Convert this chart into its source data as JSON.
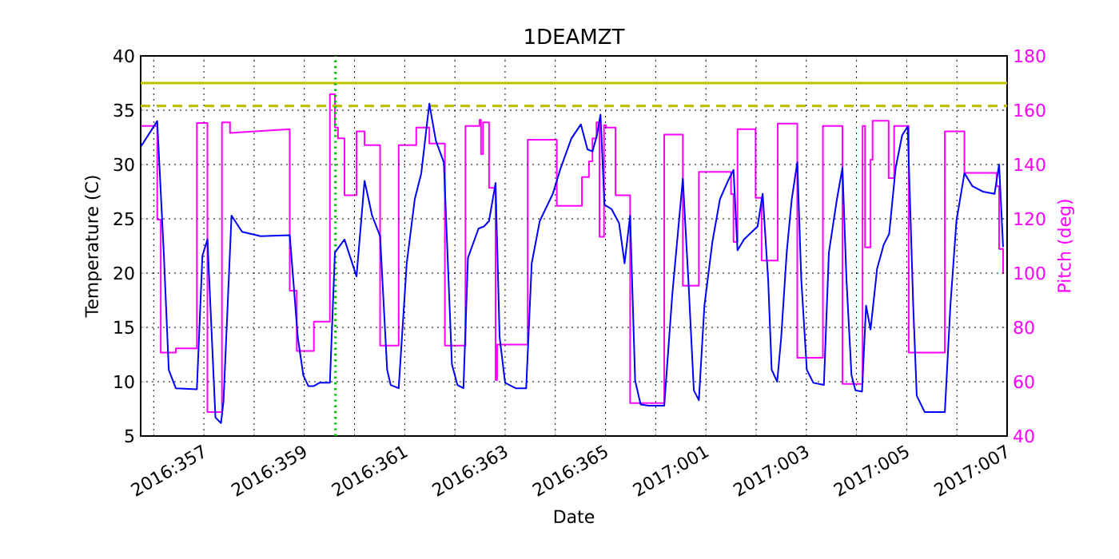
{
  "chart_data": {
    "type": "line",
    "title": "1DEAMZT",
    "xlabel": "Date",
    "ylabel": "Temperature (C)",
    "y2label": "Pitch (deg)",
    "xlim": [
      "2016-12-20T17:46",
      "2017-01-07"
    ],
    "ylim": [
      5,
      40
    ],
    "y2lim": [
      40,
      180
    ],
    "xticks": [
      {
        "value": "2016-12-21",
        "label": null
      },
      {
        "value": "2016-12-22",
        "label": "2016:357"
      },
      {
        "value": "2016-12-23",
        "label": null
      },
      {
        "value": "2016-12-24",
        "label": "2016:359"
      },
      {
        "value": "2016-12-25",
        "label": null
      },
      {
        "value": "2016-12-26",
        "label": "2016:361"
      },
      {
        "value": "2016-12-27",
        "label": null
      },
      {
        "value": "2016-12-28",
        "label": "2016:363"
      },
      {
        "value": "2016-12-29",
        "label": null
      },
      {
        "value": "2016-12-30",
        "label": "2016:365"
      },
      {
        "value": "2016-12-31",
        "label": null
      },
      {
        "value": "2017-01-01",
        "label": "2017:001"
      },
      {
        "value": "2017-01-02",
        "label": null
      },
      {
        "value": "2017-01-03",
        "label": "2017:003"
      },
      {
        "value": "2017-01-04",
        "label": null
      },
      {
        "value": "2017-01-05",
        "label": "2017:005"
      },
      {
        "value": "2017-01-06",
        "label": null
      },
      {
        "value": "2017-01-07",
        "label": "2017:007"
      }
    ],
    "yticks": [
      5,
      10,
      15,
      20,
      25,
      30,
      35,
      40
    ],
    "y2ticks": [
      40,
      60,
      80,
      100,
      120,
      140,
      160,
      180
    ],
    "grid": true,
    "ref_lines": [
      {
        "axis": "y",
        "value": 37.5,
        "color": "#bfbf00",
        "line_style": "solid"
      },
      {
        "axis": "y",
        "value": 35.4,
        "color": "#bfbf00",
        "line_style": "dashed"
      },
      {
        "axis": "x",
        "value": "2016-12-24T14:53",
        "color": "#00bf00",
        "line_style": "dotted"
      }
    ],
    "series": [
      {
        "color": "#0000ff",
        "x": [
          "2016-12-20T18:00",
          "2016-12-21T01:41",
          "2016-12-21T04:48",
          "2016-12-21T07:12",
          "2016-12-21T10:34",
          "2016-12-21T20:38",
          "2016-12-21T23:17",
          "2016-12-22T01:41",
          "2016-12-22T05:31",
          "2016-12-22T08:10",
          "2016-12-22T09:22",
          "2016-12-22T13:12",
          "2016-12-22T18:14",
          "2016-12-23T03:07",
          "2016-12-23T17:02",
          "2016-12-23T20:53",
          "2016-12-23T23:31",
          "2016-12-24T01:55",
          "2016-12-24T04:34",
          "2016-12-24T07:12",
          "2016-12-24T12:14",
          "2016-12-24T14:38",
          "2016-12-24T19:12",
          "2016-12-25T00:58",
          "2016-12-25T04:48",
          "2016-12-25T08:24",
          "2016-12-25T12:14",
          "2016-12-25T15:36",
          "2016-12-25T17:17",
          "2016-12-25T21:07",
          "2016-12-26T00:58",
          "2016-12-26T04:48",
          "2016-12-26T07:55",
          "2016-12-26T11:46",
          "2016-12-26T14:53",
          "2016-12-26T18:43",
          "2016-12-26T22:34",
          "2016-12-27T01:12",
          "2016-12-27T04:05",
          "2016-12-27T06:14",
          "2016-12-27T11:17",
          "2016-12-27T13:55",
          "2016-12-27T16:19",
          "2016-12-27T19:26",
          "2016-12-27T21:22",
          "2016-12-28T00:00",
          "2016-12-28T05:02",
          "2016-12-28T10:05",
          "2016-12-28T12:43",
          "2016-12-28T16:34",
          "2016-12-28T22:48",
          "2016-12-29T02:38",
          "2016-12-29T07:41",
          "2016-12-29T12:14",
          "2016-12-29T15:22",
          "2016-12-29T17:46",
          "2016-12-29T19:55",
          "2016-12-29T21:36",
          "2016-12-29T23:31",
          "2016-12-30T02:53",
          "2016-12-30T06:29",
          "2016-12-30T09:07",
          "2016-12-30T11:46",
          "2016-12-30T14:10",
          "2016-12-30T16:48",
          "2016-12-30T20:38",
          "2016-12-31T04:05",
          "2016-12-31T07:55",
          "2016-12-31T12:58",
          "2016-12-31T15:36",
          "2016-12-31T18:14",
          "2016-12-31T20:38",
          "2016-12-31T23:17",
          "2017-01-01T03:07",
          "2017-01-01T06:43",
          "2017-01-01T10:34",
          "2017-01-01T13:12",
          "2017-01-01T15:07",
          "2017-01-01T18:14",
          "2017-01-02T00:43",
          "2017-01-02T03:07",
          "2017-01-02T05:46",
          "2017-01-02T07:26",
          "2017-01-02T10:05",
          "2017-01-02T12:00",
          "2017-01-02T14:38",
          "2017-01-02T17:02",
          "2017-01-02T19:41",
          "2017-01-02T21:36",
          "2017-01-03T00:14",
          "2017-01-03T03:22",
          "2017-01-03T08:24",
          "2017-01-03T10:48",
          "2017-01-03T14:38",
          "2017-01-03T17:17",
          "2017-01-03T19:12",
          "2017-01-03T21:36",
          "2017-01-03T23:31",
          "2017-01-04T02:38",
          "2017-01-04T04:34",
          "2017-01-04T06:43",
          "2017-01-04T09:50",
          "2017-01-04T12:58",
          "2017-01-04T15:36",
          "2017-01-04T18:43",
          "2017-01-04T21:50",
          "2017-01-05T00:29",
          "2017-01-05T03:07",
          "2017-01-05T04:48",
          "2017-01-05T08:38",
          "2017-01-05T18:14",
          "2017-01-05T20:53",
          "2017-01-05T23:46",
          "2017-01-06T03:36",
          "2017-01-06T07:26",
          "2017-01-06T12:29",
          "2017-01-06T18:00",
          "2017-01-06T20:10",
          "2017-01-06T22:05"
        ],
        "values": [
          31.7,
          34.0,
          21.9,
          11.1,
          9.4,
          9.3,
          21.6,
          23.1,
          6.7,
          6.2,
          8.2,
          25.3,
          23.8,
          23.4,
          23.5,
          14.1,
          10.6,
          9.6,
          9.6,
          9.9,
          9.9,
          21.9,
          23.1,
          19.7,
          28.5,
          25.3,
          23.4,
          11.1,
          9.7,
          9.4,
          20.9,
          26.8,
          29.2,
          35.6,
          32.2,
          30.2,
          11.6,
          9.7,
          9.4,
          21.4,
          24.1,
          24.3,
          24.8,
          28.3,
          14.1,
          9.9,
          9.4,
          9.4,
          20.9,
          24.8,
          27.3,
          29.7,
          32.4,
          33.7,
          31.4,
          31.2,
          32.7,
          34.6,
          26.3,
          25.9,
          24.6,
          20.9,
          25.3,
          10.1,
          7.9,
          7.8,
          7.8,
          18.0,
          28.7,
          19.4,
          9.2,
          8.3,
          17.0,
          22.9,
          26.8,
          28.5,
          29.5,
          22.1,
          23.1,
          24.3,
          27.3,
          19.4,
          11.1,
          10.0,
          14.1,
          21.9,
          26.8,
          30.2,
          19.4,
          11.1,
          9.9,
          9.7,
          21.9,
          26.8,
          29.7,
          19.4,
          10.6,
          9.2,
          9.1,
          17.0,
          14.8,
          20.4,
          22.6,
          23.6,
          29.7,
          32.7,
          33.5,
          17.0,
          8.7,
          7.2,
          7.2,
          17.0,
          24.8,
          29.2,
          28.0,
          27.5,
          27.3,
          30.0,
          22.4
        ]
      },
      {
        "color": "#ff00ff",
        "axis": "y2",
        "x": [
          "2016-12-20T18:00",
          "2016-12-21T01:41",
          "2016-12-21T01:41",
          "2016-12-21T03:22",
          "2016-12-21T03:22",
          "2016-12-21T10:34",
          "2016-12-21T10:34",
          "2016-12-21T20:38",
          "2016-12-21T20:38",
          "2016-12-22T01:41",
          "2016-12-22T01:41",
          "2016-12-22T08:38",
          "2016-12-22T08:38",
          "2016-12-22T12:29",
          "2016-12-22T12:29",
          "2016-12-23T17:02",
          "2016-12-23T17:02",
          "2016-12-23T20:24",
          "2016-12-23T20:24",
          "2016-12-24T04:34",
          "2016-12-24T04:34",
          "2016-12-24T12:14",
          "2016-12-24T12:14",
          "2016-12-24T14:38",
          "2016-12-24T14:38",
          "2016-12-24T16:05",
          "2016-12-24T16:05",
          "2016-12-24T19:12",
          "2016-12-24T19:12",
          "2016-12-25T00:58",
          "2016-12-25T00:58",
          "2016-12-25T04:48",
          "2016-12-25T04:48",
          "2016-12-25T12:14",
          "2016-12-25T12:14",
          "2016-12-25T21:07",
          "2016-12-25T21:07",
          "2016-12-26T05:31",
          "2016-12-26T05:31",
          "2016-12-26T11:46",
          "2016-12-26T11:46",
          "2016-12-26T19:12",
          "2016-12-26T19:12",
          "2016-12-27T05:02",
          "2016-12-27T05:02",
          "2016-12-27T11:46",
          "2016-12-27T11:46",
          "2016-12-27T12:29",
          "2016-12-27T12:29",
          "2016-12-27T13:26",
          "2016-12-27T13:26",
          "2016-12-27T16:19",
          "2016-12-27T16:19",
          "2016-12-27T19:26",
          "2016-12-27T19:26",
          "2016-12-27T20:10",
          "2016-12-27T20:10",
          "2016-12-28T10:48",
          "2016-12-28T10:48",
          "2016-12-29T00:43",
          "2016-12-29T00:43",
          "2016-12-29T12:43",
          "2016-12-29T12:43",
          "2016-12-29T16:05",
          "2016-12-29T16:05",
          "2016-12-29T17:46",
          "2016-12-29T17:46",
          "2016-12-29T19:41",
          "2016-12-29T19:41",
          "2016-12-29T21:07",
          "2016-12-29T21:07",
          "2016-12-29T23:17",
          "2016-12-29T23:17",
          "2016-12-30T00:14",
          "2016-12-30T00:14",
          "2016-12-30T04:48",
          "2016-12-30T04:48",
          "2016-12-30T11:46",
          "2016-12-30T11:46",
          "2016-12-31T04:05",
          "2016-12-31T04:05",
          "2016-12-31T12:58",
          "2016-12-31T12:58",
          "2016-12-31T20:38",
          "2016-12-31T20:38",
          "2017-01-01T12:00",
          "2017-01-01T12:00",
          "2017-01-01T13:12",
          "2017-01-01T13:12",
          "2017-01-01T15:07",
          "2017-01-01T15:07",
          "2017-01-01T23:46",
          "2017-01-01T23:46",
          "2017-01-02T02:38",
          "2017-01-02T02:38",
          "2017-01-02T10:19",
          "2017-01-02T10:19",
          "2017-01-02T19:41",
          "2017-01-02T19:41",
          "2017-01-03T07:55",
          "2017-01-03T07:55",
          "2017-01-03T17:17",
          "2017-01-03T17:17",
          "2017-01-04T02:53",
          "2017-01-04T02:53",
          "2017-01-04T04:05",
          "2017-01-04T04:05",
          "2017-01-04T06:43",
          "2017-01-04T06:43",
          "2017-01-04T07:41",
          "2017-01-04T07:41",
          "2017-01-04T15:22",
          "2017-01-04T15:22",
          "2017-01-04T18:00",
          "2017-01-04T18:00",
          "2017-01-05T00:58",
          "2017-01-05T00:58",
          "2017-01-05T18:14",
          "2017-01-05T18:14",
          "2017-01-06T03:36",
          "2017-01-06T03:36",
          "2017-01-06T18:58",
          "2017-01-06T18:58",
          "2017-01-06T20:10",
          "2017-01-06T20:10",
          "2017-01-06T22:05",
          "2017-01-06T22:05"
        ],
        "values": [
          154.2,
          154.2,
          119.7,
          119.7,
          70.7,
          70.7,
          72.3,
          72.3,
          155.3,
          155.3,
          48.8,
          48.8,
          155.5,
          155.5,
          151.6,
          153.0,
          93.5,
          93.5,
          71.3,
          71.3,
          82.1,
          82.1,
          165.9,
          165.9,
          153.6,
          153.6,
          149.6,
          149.6,
          128.7,
          128.7,
          152.2,
          152.2,
          147.1,
          147.1,
          73.3,
          73.3,
          147.1,
          147.1,
          153.6,
          153.6,
          147.7,
          147.7,
          73.3,
          73.3,
          154.2,
          154.2,
          156.5,
          156.5,
          143.8,
          143.8,
          155.5,
          155.5,
          131.4,
          131.4,
          60.6,
          60.6,
          73.7,
          73.7,
          149.1,
          149.1,
          124.8,
          124.8,
          135.4,
          135.4,
          141.2,
          141.2,
          149.6,
          149.6,
          155.5,
          155.5,
          113.4,
          113.4,
          154.5,
          154.5,
          153.6,
          153.6,
          128.7,
          128.7,
          52.1,
          52.1,
          151.0,
          151.0,
          95.4,
          95.4,
          137.3,
          137.3,
          129.1,
          129.1,
          111.5,
          111.5,
          153.0,
          153.0,
          127.7,
          127.7,
          104.6,
          104.6,
          155.1,
          155.1,
          68.8,
          68.8,
          154.2,
          154.2,
          59.2,
          59.2,
          154.2,
          154.2,
          109.5,
          109.5,
          141.8,
          141.8,
          156.1,
          156.1,
          135.0,
          135.0,
          154.2,
          154.2,
          70.7,
          70.7,
          152.2,
          152.2,
          136.9,
          136.9,
          132.0,
          132.0,
          108.9,
          108.9,
          99.7
        ]
      }
    ]
  }
}
